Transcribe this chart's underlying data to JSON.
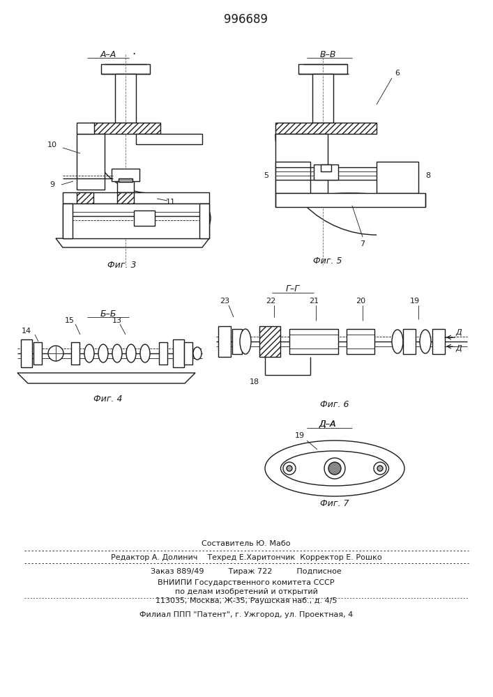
{
  "title": "996689",
  "bg_color": "#ffffff",
  "line_color": "#1a1a1a",
  "hatch_color": "#555555",
  "footer": {
    "line1": "Составитель Ю. Мабо",
    "line2": "Редактор А. Долинич    Техред Е.Харитончик  Корректор Е. Рошко",
    "line3": "Заказ 889/49          Тираж 722          Подписное",
    "line4": "ВНИИПИ Государственного комитета СССР",
    "line5": "по делам изобретений и открытий",
    "line6": "113035, Москва, Ж-35, Раушская наб., д. 4/5",
    "line7": "Филиал ППП \"Патент\", г. Ужгород, ул. Проектная, 4"
  }
}
